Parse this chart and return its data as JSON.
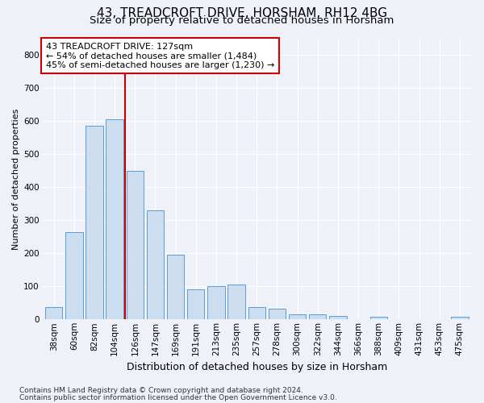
{
  "title": "43, TREADCROFT DRIVE, HORSHAM, RH12 4BG",
  "subtitle": "Size of property relative to detached houses in Horsham",
  "xlabel": "Distribution of detached houses by size in Horsham",
  "ylabel": "Number of detached properties",
  "bar_labels": [
    "38sqm",
    "60sqm",
    "82sqm",
    "104sqm",
    "126sqm",
    "147sqm",
    "169sqm",
    "191sqm",
    "213sqm",
    "235sqm",
    "257sqm",
    "278sqm",
    "300sqm",
    "322sqm",
    "344sqm",
    "366sqm",
    "388sqm",
    "409sqm",
    "431sqm",
    "453sqm",
    "475sqm"
  ],
  "bar_values": [
    38,
    265,
    585,
    605,
    450,
    330,
    195,
    90,
    100,
    105,
    38,
    33,
    15,
    15,
    10,
    0,
    7,
    0,
    0,
    0,
    7
  ],
  "bar_color": "#ccddf0",
  "bar_edge_color": "#5b9bd5",
  "vline_color": "#cc0000",
  "vline_x_index": 4,
  "annotation_text_line1": "43 TREADCROFT DRIVE: 127sqm",
  "annotation_text_line2": "← 54% of detached houses are smaller (1,484)",
  "annotation_text_line3": "45% of semi-detached houses are larger (1,230) →",
  "annotation_box_color": "#ffffff",
  "annotation_box_edge_color": "#cc0000",
  "ylim": [
    0,
    850
  ],
  "yticks": [
    0,
    100,
    200,
    300,
    400,
    500,
    600,
    700,
    800
  ],
  "footer_line1": "Contains HM Land Registry data © Crown copyright and database right 2024.",
  "footer_line2": "Contains public sector information licensed under the Open Government Licence v3.0.",
  "background_color": "#eef2f8",
  "grid_color": "#ffffff",
  "title_fontsize": 11,
  "subtitle_fontsize": 9.5,
  "ylabel_fontsize": 8,
  "xlabel_fontsize": 9,
  "tick_fontsize": 7.5,
  "annotation_fontsize": 8,
  "footer_fontsize": 6.5
}
